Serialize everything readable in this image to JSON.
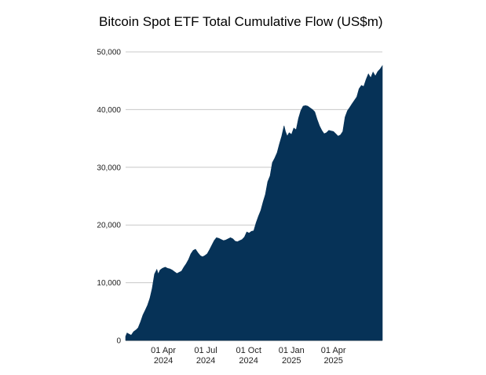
{
  "chart_data": {
    "type": "area",
    "title": "Bitcoin Spot ETF Total Cumulative Flow (US$m)",
    "xlabel": "",
    "ylabel": "",
    "ylim": [
      0,
      50000
    ],
    "xlim": [
      "2024-01-11",
      "2025-07-15"
    ],
    "grid": true,
    "color": "#063257",
    "y_ticks": [
      {
        "value": 0,
        "label": "0"
      },
      {
        "value": 10000,
        "label": "10,000"
      },
      {
        "value": 20000,
        "label": "20,000"
      },
      {
        "value": 30000,
        "label": "30,000"
      },
      {
        "value": 40000,
        "label": "40,000"
      },
      {
        "value": 50000,
        "label": "50,000"
      }
    ],
    "x_ticks": [
      {
        "date": "2024-04-01",
        "line1": "01 Apr",
        "line2": "2024"
      },
      {
        "date": "2024-07-01",
        "line1": "01 Jul",
        "line2": "2024"
      },
      {
        "date": "2024-10-01",
        "line1": "01 Oct",
        "line2": "2024"
      },
      {
        "date": "2025-01-01",
        "line1": "01 Jan",
        "line2": "2025"
      },
      {
        "date": "2025-04-01",
        "line1": "01 Apr",
        "line2": "2025"
      }
    ],
    "series": [
      {
        "points": [
          [
            "2024-01-11",
            700
          ],
          [
            "2024-01-14",
            1300
          ],
          [
            "2024-01-18",
            1100
          ],
          [
            "2024-01-23",
            900
          ],
          [
            "2024-01-28",
            1500
          ],
          [
            "2024-02-02",
            1800
          ],
          [
            "2024-02-07",
            2200
          ],
          [
            "2024-02-12",
            3200
          ],
          [
            "2024-02-17",
            4400
          ],
          [
            "2024-02-22",
            5200
          ],
          [
            "2024-02-27",
            6100
          ],
          [
            "2024-03-03",
            7300
          ],
          [
            "2024-03-08",
            9000
          ],
          [
            "2024-03-13",
            11500
          ],
          [
            "2024-03-18",
            12300
          ],
          [
            "2024-03-21",
            11500
          ],
          [
            "2024-03-25",
            12200
          ],
          [
            "2024-03-30",
            12500
          ],
          [
            "2024-04-05",
            12700
          ],
          [
            "2024-04-10",
            12500
          ],
          [
            "2024-04-15",
            12400
          ],
          [
            "2024-04-20",
            12200
          ],
          [
            "2024-04-25",
            11900
          ],
          [
            "2024-04-30",
            11600
          ],
          [
            "2024-05-05",
            11800
          ],
          [
            "2024-05-10",
            12000
          ],
          [
            "2024-05-15",
            12700
          ],
          [
            "2024-05-20",
            13300
          ],
          [
            "2024-05-25",
            14000
          ],
          [
            "2024-05-30",
            15000
          ],
          [
            "2024-06-04",
            15600
          ],
          [
            "2024-06-09",
            15800
          ],
          [
            "2024-06-14",
            15200
          ],
          [
            "2024-06-19",
            14700
          ],
          [
            "2024-06-24",
            14500
          ],
          [
            "2024-06-29",
            14700
          ],
          [
            "2024-07-04",
            15000
          ],
          [
            "2024-07-09",
            15700
          ],
          [
            "2024-07-14",
            16500
          ],
          [
            "2024-07-19",
            17300
          ],
          [
            "2024-07-24",
            17800
          ],
          [
            "2024-07-29",
            17700
          ],
          [
            "2024-08-03",
            17500
          ],
          [
            "2024-08-08",
            17300
          ],
          [
            "2024-08-13",
            17400
          ],
          [
            "2024-08-18",
            17600
          ],
          [
            "2024-08-23",
            17800
          ],
          [
            "2024-08-28",
            17600
          ],
          [
            "2024-09-02",
            17200
          ],
          [
            "2024-09-07",
            17100
          ],
          [
            "2024-09-12",
            17300
          ],
          [
            "2024-09-17",
            17500
          ],
          [
            "2024-09-22",
            17900
          ],
          [
            "2024-09-27",
            18800
          ],
          [
            "2024-10-02",
            18600
          ],
          [
            "2024-10-07",
            18900
          ],
          [
            "2024-10-12",
            19000
          ],
          [
            "2024-10-17",
            20400
          ],
          [
            "2024-10-22",
            21500
          ],
          [
            "2024-10-27",
            22500
          ],
          [
            "2024-11-01",
            24000
          ],
          [
            "2024-11-06",
            25300
          ],
          [
            "2024-11-11",
            27500
          ],
          [
            "2024-11-16",
            28500
          ],
          [
            "2024-11-21",
            30800
          ],
          [
            "2024-11-26",
            31600
          ],
          [
            "2024-12-01",
            32500
          ],
          [
            "2024-12-06",
            34000
          ],
          [
            "2024-12-11",
            35400
          ],
          [
            "2024-12-16",
            37200
          ],
          [
            "2024-12-19",
            36200
          ],
          [
            "2024-12-23",
            35400
          ],
          [
            "2024-12-27",
            36000
          ],
          [
            "2025-01-01",
            35700
          ],
          [
            "2025-01-06",
            36800
          ],
          [
            "2025-01-11",
            36500
          ],
          [
            "2025-01-16",
            38500
          ],
          [
            "2025-01-21",
            39800
          ],
          [
            "2025-01-26",
            40600
          ],
          [
            "2025-01-31",
            40700
          ],
          [
            "2025-02-05",
            40600
          ],
          [
            "2025-02-10",
            40300
          ],
          [
            "2025-02-15",
            40000
          ],
          [
            "2025-02-20",
            39600
          ],
          [
            "2025-02-25",
            38300
          ],
          [
            "2025-03-02",
            37200
          ],
          [
            "2025-03-07",
            36400
          ],
          [
            "2025-03-12",
            35800
          ],
          [
            "2025-03-17",
            36000
          ],
          [
            "2025-03-22",
            36400
          ],
          [
            "2025-03-27",
            36300
          ],
          [
            "2025-04-01",
            36200
          ],
          [
            "2025-04-06",
            35800
          ],
          [
            "2025-04-11",
            35400
          ],
          [
            "2025-04-16",
            35600
          ],
          [
            "2025-04-21",
            36200
          ],
          [
            "2025-04-26",
            38700
          ],
          [
            "2025-05-01",
            39800
          ],
          [
            "2025-05-06",
            40400
          ],
          [
            "2025-05-11",
            41000
          ],
          [
            "2025-05-16",
            41600
          ],
          [
            "2025-05-21",
            42200
          ],
          [
            "2025-05-26",
            43600
          ],
          [
            "2025-05-31",
            44200
          ],
          [
            "2025-06-05",
            44000
          ],
          [
            "2025-06-10",
            45200
          ],
          [
            "2025-06-15",
            46200
          ],
          [
            "2025-06-20",
            45500
          ],
          [
            "2025-06-25",
            46500
          ],
          [
            "2025-06-30",
            45800
          ],
          [
            "2025-07-05",
            46600
          ],
          [
            "2025-07-10",
            47000
          ],
          [
            "2025-07-15",
            47600
          ]
        ]
      }
    ]
  }
}
